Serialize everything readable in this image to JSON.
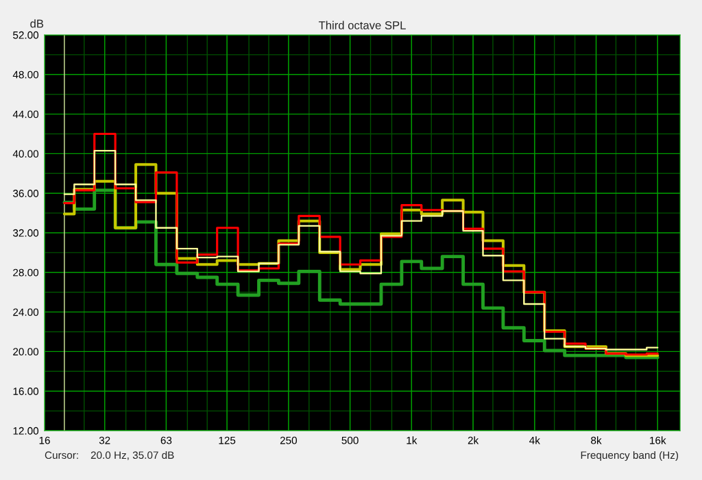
{
  "chart_data": {
    "type": "step",
    "title": "Third octave SPL",
    "xlabel": "Frequency band (Hz)",
    "ylabel": "dB",
    "log": "x",
    "grid": true,
    "legend": false,
    "x": [
      20,
      25,
      31.5,
      40,
      50,
      63,
      80,
      100,
      125,
      160,
      200,
      250,
      315,
      400,
      500,
      630,
      800,
      1000,
      1250,
      1600,
      2000,
      2500,
      3150,
      4000,
      5000,
      6300,
      8000,
      10000,
      12500,
      16000
    ],
    "series": [
      {
        "color": "#22a022",
        "values": [
          35.07,
          34.4,
          36.3,
          32.5,
          33.1,
          28.8,
          27.9,
          27.5,
          26.8,
          25.7,
          27.2,
          26.9,
          28.1,
          25.2,
          24.8,
          24.8,
          26.8,
          29.1,
          28.4,
          29.6,
          26.8,
          24.4,
          22.4,
          21.1,
          20.1,
          19.6,
          19.6,
          19.6,
          19.4,
          19.4
        ]
      },
      {
        "color": "#c8c800",
        "values": [
          33.9,
          36.4,
          37.2,
          32.5,
          38.9,
          36.0,
          29.4,
          28.8,
          29.2,
          28.8,
          28.9,
          31.2,
          33.2,
          30.0,
          28.3,
          28.8,
          31.9,
          34.3,
          33.9,
          35.3,
          34.1,
          31.2,
          28.7,
          26.0,
          22.1,
          20.5,
          20.5,
          19.8,
          19.6,
          19.6
        ]
      },
      {
        "color": "#ff0000",
        "values": [
          35.0,
          36.3,
          42.0,
          36.5,
          35.1,
          38.1,
          29.0,
          29.8,
          32.5,
          28.2,
          28.4,
          30.9,
          33.7,
          31.6,
          28.8,
          29.2,
          31.6,
          34.8,
          34.3,
          34.2,
          32.4,
          30.4,
          28.1,
          26.0,
          22.0,
          20.8,
          20.3,
          19.8,
          19.7,
          19.8
        ]
      },
      {
        "color": "#ffff99",
        "values": [
          35.9,
          36.9,
          40.3,
          36.9,
          35.3,
          32.5,
          30.4,
          29.5,
          29.6,
          28.1,
          28.9,
          30.8,
          32.7,
          30.1,
          28.1,
          27.9,
          31.7,
          33.2,
          33.7,
          34.2,
          32.2,
          29.7,
          27.2,
          24.8,
          21.3,
          20.5,
          20.3,
          20.2,
          20.2,
          20.4
        ]
      }
    ],
    "xlim": [
      16,
      20600
    ],
    "xticks": [
      16,
      {
        "value": 31.5,
        "label": "32"
      },
      63,
      125,
      250,
      500,
      {
        "value": 1000,
        "label": "1k"
      },
      {
        "value": 2000,
        "label": "2k"
      },
      {
        "value": 4000,
        "label": "4k"
      },
      {
        "value": 8000,
        "label": "8k"
      },
      {
        "value": 16000,
        "label": "16k"
      }
    ],
    "ylim": [
      12,
      52
    ],
    "yticks": [
      {
        "value": 12,
        "label": "12.00"
      },
      {
        "value": 16,
        "label": "16.00"
      },
      {
        "value": 20,
        "label": "20.00"
      },
      {
        "value": 24,
        "label": "24.00"
      },
      {
        "value": 28,
        "label": "28.00"
      },
      {
        "value": 32,
        "label": "32.00"
      },
      {
        "value": 36,
        "label": "36.00"
      },
      {
        "value": 40,
        "label": "40.00"
      },
      {
        "value": 44,
        "label": "44.00"
      },
      {
        "value": 48,
        "label": "48.00"
      },
      {
        "value": 52,
        "label": "52.00"
      }
    ],
    "ref_lines": [
      {
        "axis": "x",
        "value": 20,
        "color": "#d8d8a0"
      }
    ],
    "annotations": [
      "Cursor:    20.0 Hz, 35.07 dB"
    ]
  }
}
